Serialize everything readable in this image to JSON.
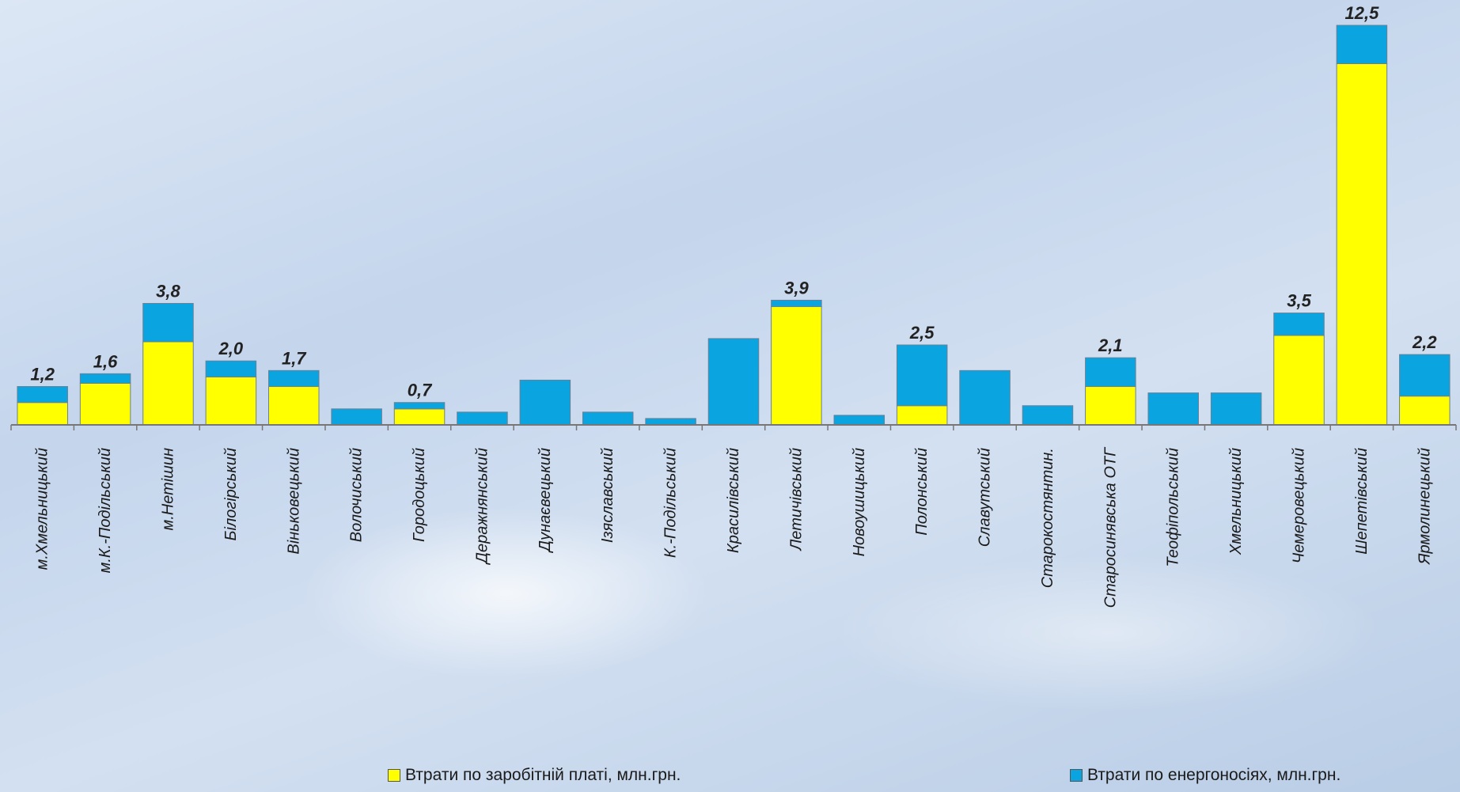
{
  "chart_data": {
    "type": "bar",
    "stacked": true,
    "categories": [
      "м.Хмельницький",
      "м.К.-Подільський",
      "м.Нетішин",
      "Білогірський",
      "Віньковецький",
      "Волочиський",
      "Городоцький",
      "Деражнянський",
      "Дунаєвецький",
      "Ізяславський",
      "К.-Подільський",
      "Красилівський",
      "Летичівський",
      "Новоушицький",
      "Полонський",
      "Славутський",
      "Старокостянтин.",
      "Старосинявська ОТГ",
      "Теофіпольський",
      "Хмельницький",
      "Чемеровецький",
      "Шепетівський",
      "Ярмолинецький"
    ],
    "series": [
      {
        "name": "Втрати по заробітній платі, млн.грн.",
        "color": "#ffff00",
        "values": [
          0.7,
          1.3,
          2.6,
          1.5,
          1.2,
          0,
          0.5,
          0,
          0,
          0,
          0,
          0,
          3.7,
          0,
          0.6,
          0,
          0,
          1.2,
          0,
          0,
          2.8,
          11.3,
          0.9
        ]
      },
      {
        "name": "Втрати по енергоносіях, млн.грн.",
        "color": "#0aa5e0",
        "values": [
          0.5,
          0.3,
          1.2,
          0.5,
          0.5,
          0.5,
          0.2,
          0.4,
          1.4,
          0.4,
          0.2,
          2.7,
          0.2,
          0.3,
          1.9,
          1.7,
          0.6,
          0.9,
          1.0,
          1.0,
          0.7,
          1.2,
          1.3
        ]
      }
    ],
    "totals_labels": [
      "1,2",
      "1,6",
      "3,8",
      "2,0",
      "1,7",
      "",
      "0,7",
      "",
      "",
      "",
      "",
      "",
      "3,9",
      "",
      "2,5",
      "",
      "",
      "2,1",
      "",
      "",
      "3,5",
      "12,5",
      "2,2"
    ],
    "ylim": [
      0,
      12.5
    ],
    "legend_position": "bottom",
    "grid": false
  }
}
